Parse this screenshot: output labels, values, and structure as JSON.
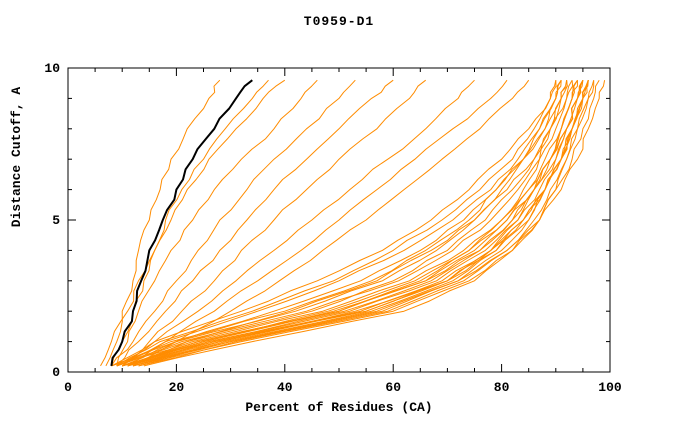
{
  "chart_data": {
    "type": "line",
    "title": "T0959-D1",
    "xlabel": "Percent of Residues (CA)",
    "ylabel": "Distance Cutoff, A",
    "xlim": [
      0,
      100
    ],
    "ylim": [
      0,
      10
    ],
    "x_ticks": [
      0,
      20,
      40,
      60,
      80,
      100
    ],
    "y_ticks": [
      0,
      5,
      10
    ],
    "x_minor_tick_step": 5,
    "y_minor_tick_step": 1,
    "grid": false,
    "legend": "none",
    "colors": {
      "series": "#FF8C00",
      "highlight": "#000000",
      "text": "#000000",
      "background": "#FFFFFF"
    },
    "cutoffs": [
      0.2,
      1,
      2,
      3,
      4,
      5,
      6,
      7,
      8,
      9,
      9.6
    ],
    "series": [
      [
        7,
        9,
        10,
        12,
        13,
        15,
        17,
        19,
        22,
        26,
        28
      ],
      [
        8,
        10,
        12,
        14,
        16,
        18,
        21,
        25,
        29,
        34,
        37
      ],
      [
        6,
        8,
        11,
        13,
        16,
        19,
        22,
        26,
        31,
        36,
        40
      ],
      [
        9,
        11,
        13,
        16,
        19,
        23,
        27,
        32,
        38,
        43,
        46
      ],
      [
        8,
        12,
        16,
        20,
        24,
        28,
        33,
        38,
        44,
        50,
        53
      ],
      [
        9,
        13,
        18,
        23,
        28,
        33,
        38,
        44,
        50,
        56,
        60
      ],
      [
        10,
        15,
        21,
        27,
        32,
        38,
        44,
        50,
        57,
        63,
        66
      ],
      [
        10,
        16,
        24,
        31,
        38,
        45,
        52,
        59,
        66,
        72,
        75
      ],
      [
        11,
        18,
        27,
        35,
        43,
        50,
        57,
        64,
        71,
        78,
        81
      ],
      [
        12,
        20,
        30,
        39,
        47,
        55,
        62,
        69,
        76,
        82,
        85
      ],
      [
        9,
        18,
        35,
        50,
        62,
        71,
        78,
        83,
        87,
        90,
        91
      ],
      [
        10,
        20,
        38,
        54,
        65,
        73,
        79,
        84,
        88,
        91,
        92
      ],
      [
        8,
        16,
        32,
        46,
        58,
        67,
        74,
        80,
        85,
        89,
        90
      ],
      [
        9,
        17,
        34,
        49,
        60,
        69,
        76,
        82,
        86,
        89,
        90
      ],
      [
        11,
        22,
        41,
        57,
        67,
        75,
        81,
        86,
        89,
        92,
        93
      ],
      [
        10,
        25,
        50,
        65,
        74,
        80,
        84,
        87,
        89,
        91,
        92
      ],
      [
        11,
        28,
        55,
        70,
        78,
        83,
        86,
        89,
        91,
        93,
        94
      ],
      [
        9,
        22,
        45,
        60,
        70,
        77,
        82,
        86,
        89,
        91,
        92
      ],
      [
        12,
        30,
        58,
        72,
        80,
        85,
        88,
        91,
        93,
        95,
        96
      ],
      [
        10,
        26,
        52,
        68,
        77,
        83,
        87,
        90,
        92,
        94,
        95
      ],
      [
        8,
        20,
        42,
        58,
        68,
        75,
        80,
        84,
        88,
        90,
        91
      ],
      [
        11,
        27,
        54,
        69,
        78,
        84,
        88,
        91,
        93,
        95,
        96
      ],
      [
        13,
        32,
        60,
        74,
        82,
        87,
        90,
        92,
        94,
        96,
        97
      ],
      [
        9,
        23,
        47,
        63,
        73,
        80,
        85,
        88,
        91,
        93,
        94
      ],
      [
        10,
        24,
        49,
        66,
        76,
        82,
        86,
        90,
        92,
        94,
        95
      ],
      [
        12,
        29,
        56,
        71,
        79,
        85,
        88,
        91,
        93,
        95,
        96
      ],
      [
        8,
        19,
        40,
        56,
        66,
        74,
        79,
        84,
        87,
        90,
        91
      ],
      [
        11,
        26,
        51,
        67,
        76,
        82,
        86,
        89,
        92,
        94,
        95
      ],
      [
        10,
        25,
        48,
        64,
        74,
        81,
        85,
        89,
        91,
        93,
        94
      ],
      [
        13,
        31,
        59,
        73,
        81,
        86,
        89,
        92,
        94,
        96,
        97
      ],
      [
        9,
        21,
        44,
        61,
        71,
        78,
        83,
        87,
        90,
        92,
        93
      ],
      [
        12,
        28,
        53,
        70,
        78,
        84,
        88,
        91,
        93,
        95,
        96
      ],
      [
        10,
        24,
        50,
        66,
        75,
        81,
        86,
        89,
        92,
        94,
        95
      ],
      [
        14,
        34,
        62,
        75,
        82,
        87,
        90,
        93,
        95,
        97,
        98
      ],
      [
        11,
        27,
        55,
        70,
        79,
        84,
        88,
        91,
        93,
        95,
        96
      ],
      [
        12,
        30,
        57,
        72,
        81,
        87,
        91,
        94,
        96,
        98,
        99
      ]
    ],
    "highlight_series": [
      8,
      10,
      12,
      13.5,
      15,
      17.5,
      20,
      23,
      27,
      31,
      34
    ]
  }
}
